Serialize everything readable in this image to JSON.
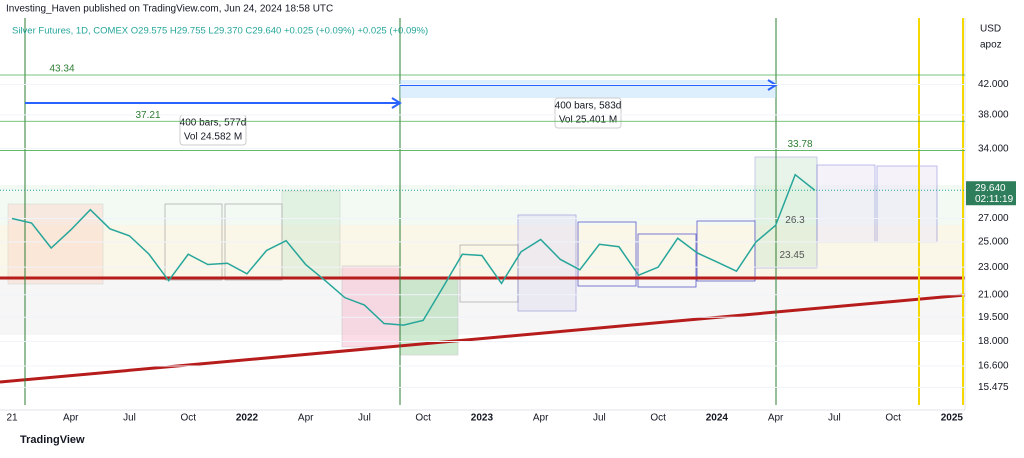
{
  "chart_data": {
    "type": "line",
    "title": "Investing_Haven published on TradingView.com, Jun 24, 2024 18:58 UTC",
    "subtitle": "Silver Futures, 1D, COMEX  O29.575  H29.755  L29.370  C29.640  +0.025 (+0.09%)  +0.025 (+0.09%)",
    "categories": [
      "21",
      null,
      null,
      "Apr",
      null,
      null,
      "Jul",
      null,
      null,
      "Oct",
      null,
      null,
      "2022",
      null,
      null,
      "Apr",
      null,
      null,
      "Jul",
      null,
      null,
      "Oct",
      null,
      null,
      "2023",
      null,
      null,
      "Apr",
      null,
      null,
      "Jul",
      null,
      null,
      "Oct",
      null,
      null,
      "2024",
      null,
      null,
      "Apr",
      null,
      null,
      "Jul",
      null,
      null,
      "Oct",
      null,
      null,
      "2025"
    ],
    "values": [
      27,
      26.6,
      24.5,
      26,
      27.8,
      26.1,
      25.5,
      24,
      22,
      24,
      23.2,
      23.3,
      22.5,
      24.3,
      25.1,
      23.2,
      22,
      20.8,
      20.3,
      19.1,
      19,
      19.3,
      21.5,
      24,
      23.9,
      21.8,
      24.2,
      25.2,
      23.6,
      22.8,
      24.8,
      24.6,
      22.4,
      23,
      25.3,
      24.1,
      23.4,
      22.7,
      25,
      26.4,
      31.2,
      29.64,
      null,
      null,
      null,
      null,
      null,
      null,
      null
    ],
    "color": "#26a69a",
    "yscale": "log",
    "ylim": [
      14.6,
      52.3
    ],
    "yticks": [
      {
        "value": 42,
        "label": "42.000"
      },
      {
        "value": 38,
        "label": "38.000"
      },
      {
        "value": 34,
        "label": "34.000"
      },
      {
        "value": 27,
        "label": "27.000"
      },
      {
        "value": 25,
        "label": "25.000"
      },
      {
        "value": 23,
        "label": "23.000"
      },
      {
        "value": 21,
        "label": "21.000"
      },
      {
        "value": 19.5,
        "label": "19.500"
      },
      {
        "value": 18,
        "label": "18.000"
      },
      {
        "value": 16.6,
        "label": "16.600"
      },
      {
        "value": 15.475,
        "label": "15.475"
      }
    ],
    "levels": [
      43.34,
      37.21,
      33.78,
      26.3,
      23.45
    ],
    "last_price": {
      "value": 29.64,
      "label": "29.640"
    },
    "countdown": "02:11:19",
    "currency": "USD",
    "unit": "apoz",
    "measures": [
      {
        "bars": "400 bars, 577d",
        "vol": "Vol 24.582 M"
      },
      {
        "bars": "400 bars, 583d",
        "vol": "Vol 25.401 M"
      }
    ],
    "brand": "TradingView"
  }
}
